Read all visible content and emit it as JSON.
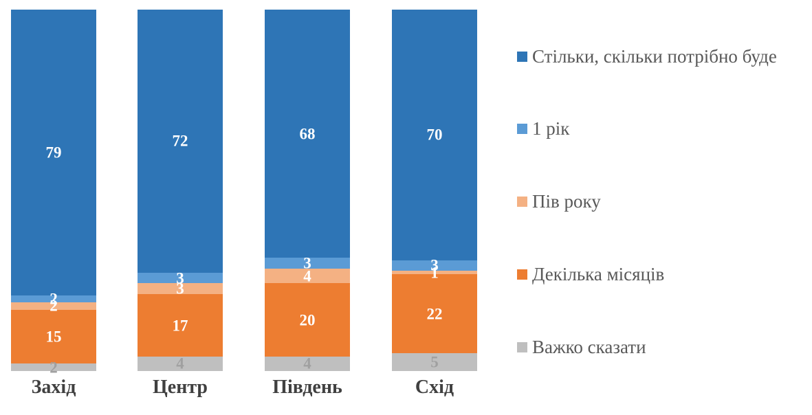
{
  "chart_data": {
    "type": "bar",
    "variant": "stacked-100-percent-column",
    "categories": [
      "Захід",
      "Центр",
      "Південь",
      "Схід"
    ],
    "series": [
      {
        "name": "Стільки, скільки потрібно буде",
        "color": "#2E75B6",
        "label_color": "#FFFFFF",
        "values": [
          79,
          72,
          68,
          70
        ]
      },
      {
        "name": "1 рік",
        "color": "#5B9BD5",
        "label_color": "#FFFFFF",
        "values": [
          2,
          3,
          3,
          3
        ]
      },
      {
        "name": "Пів року",
        "color": "#F4B183",
        "label_color": "#FFFFFF",
        "values": [
          2,
          3,
          4,
          1
        ]
      },
      {
        "name": "Декілька місяців",
        "color": "#ED7D31",
        "label_color": "#FFFFFF",
        "values": [
          15,
          17,
          20,
          22
        ]
      },
      {
        "name": "Важко сказати",
        "color": "#BFBFBF",
        "label_color": "#A0A0A0",
        "values": [
          2,
          4,
          4,
          5
        ]
      }
    ],
    "title": "",
    "xlabel": "",
    "ylabel": "",
    "ylim": [
      0,
      100
    ],
    "grid": false,
    "axes_visible": false,
    "data_labels": true,
    "legend_position": "right"
  },
  "colors": {
    "background": "#FFFFFF",
    "category_label_text": "#404040",
    "legend_text": "#595959"
  }
}
